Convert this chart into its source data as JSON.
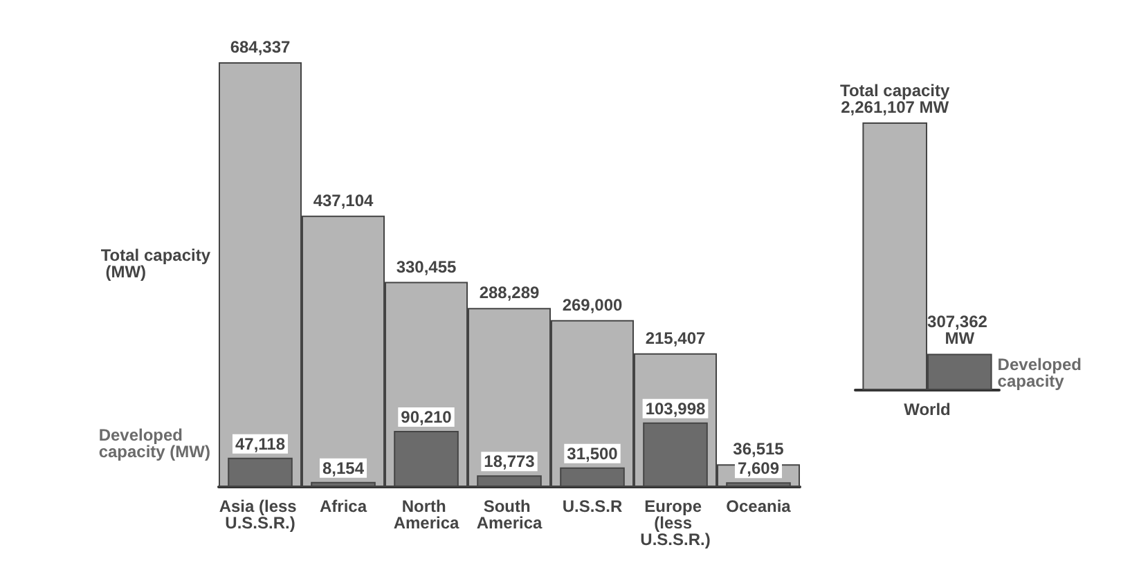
{
  "chart_data": [
    {
      "type": "bar",
      "categories": [
        "Asia (less U.S.S.R.)",
        "Africa",
        "North America",
        "South America",
        "U.S.S.R",
        "Europe (less U.S.S.R.)",
        "Oceania"
      ],
      "series": [
        {
          "name": "Total capacity (MW)",
          "color": "#b5b5b5",
          "values": [
            684337,
            437104,
            330455,
            288289,
            269000,
            215407,
            36515
          ],
          "value_labels": [
            "684,337",
            "437,104",
            "330,455",
            "288,289",
            "269,000",
            "215,407",
            "36,515"
          ]
        },
        {
          "name": "Developed capacity (MW)",
          "color": "#6b6b6b",
          "values": [
            47118,
            8154,
            90210,
            18773,
            31500,
            103998,
            7609
          ],
          "value_labels": [
            "47,118",
            "8,154",
            "90,210",
            "18,773",
            "31,500",
            "103,998",
            "7,609"
          ]
        }
      ],
      "tick_labels": "x",
      "legend": false,
      "grid": false
    },
    {
      "type": "bar",
      "categories": [
        "World"
      ],
      "series": [
        {
          "name": "Total capacity",
          "color": "#b5b5b5",
          "values": [
            2261107
          ],
          "value_labels": [
            "2,261,107 MW"
          ]
        },
        {
          "name": "Developed capacity",
          "color": "#6b6b6b",
          "values": [
            307362
          ],
          "value_labels": [
            "307,362 MW"
          ]
        }
      ],
      "tick_labels": "x",
      "legend": false,
      "grid": false
    }
  ]
}
